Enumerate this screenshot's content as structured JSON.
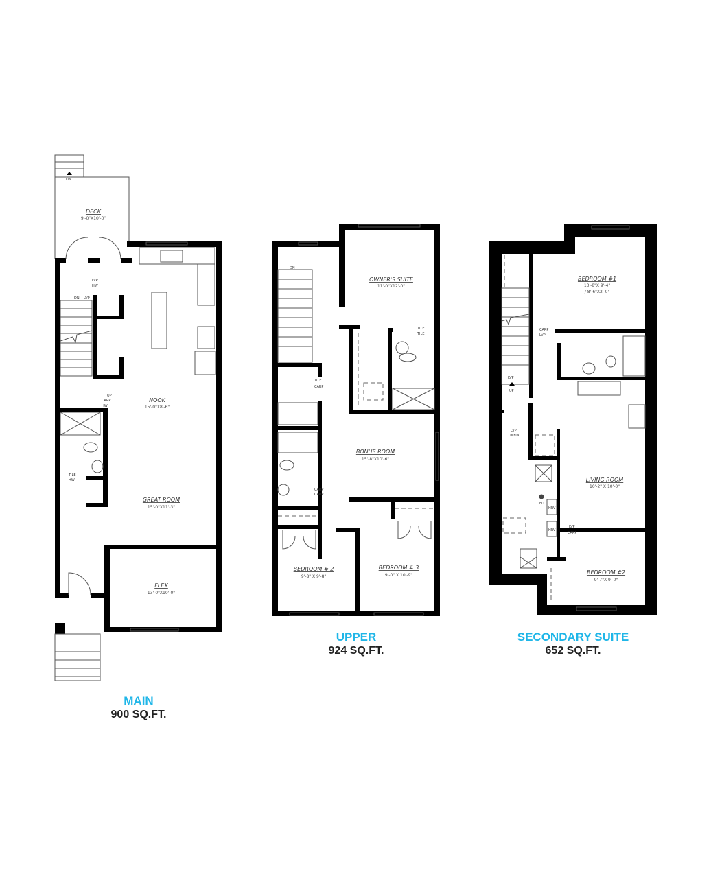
{
  "colors": {
    "accent": "#1fb6e8",
    "walls": "#000000"
  },
  "plans": [
    {
      "title": "MAIN",
      "area": "900 SQ.FT.",
      "rooms": [
        {
          "name": "DECK",
          "dims": "9'-0\"X10'-0\""
        },
        {
          "name": "NOOK",
          "dims": "15'-0\"X8'-6\""
        },
        {
          "name": "GREAT ROOM",
          "dims": "15'-0\"X11'-3\""
        },
        {
          "name": "FLEX",
          "dims": "13'-0\"X10'-0\""
        }
      ],
      "notes": [
        "DN",
        "DN",
        "LVP",
        "LVP",
        "HW",
        "CARP",
        "HW",
        "UP",
        "TILE",
        "HW"
      ]
    },
    {
      "title": "UPPER",
      "area": "924 SQ.FT.",
      "rooms": [
        {
          "name": "OWNER'S SUITE",
          "dims": "11'-0\"X12'-0\""
        },
        {
          "name": "BONUS ROOM",
          "dims": "15'-8\"X10'-6\""
        },
        {
          "name": "BEDROOM # 2",
          "dims": "9'-8\" X 9'-8\""
        },
        {
          "name": "BEDROOM # 3",
          "dims": "9'-0\" X 10'-9\""
        }
      ],
      "notes": [
        "DN",
        "CARP",
        "TILE",
        "TILE",
        "CARP",
        "TILE",
        "CARP"
      ]
    },
    {
      "title": "SECONDARY SUITE",
      "area": "652 SQ.FT.",
      "rooms": [
        {
          "name": "BEDROOM #1",
          "dims": "13'-8\"X 9'-4\"",
          "dims2": "/ 8'-6\"X2'-0\""
        },
        {
          "name": "LIVING ROOM",
          "dims": "10'-2\" X 10'-0\""
        },
        {
          "name": "BEDROOM #2",
          "dims": "9'-7\"X 9'-0\""
        }
      ],
      "notes": [
        "CARP",
        "LVP",
        "LVP",
        "UP",
        "LVP",
        "UNFIN",
        "FD",
        "HRV",
        "HRV",
        "LVP",
        "CARP"
      ]
    }
  ]
}
